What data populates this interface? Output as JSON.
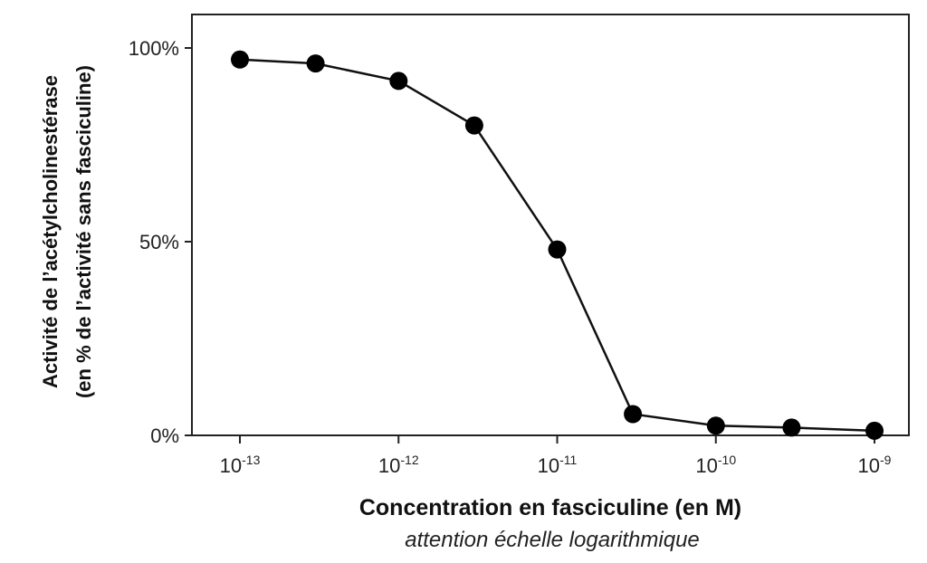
{
  "chart_data": {
    "type": "line",
    "xscale": "log",
    "x": [
      1e-13,
      3e-13,
      1e-12,
      3e-12,
      1e-11,
      3e-11,
      1e-10,
      3e-10,
      1e-09
    ],
    "series": [
      {
        "values": [
          97,
          96,
          91.5,
          80,
          48,
          5.5,
          2.5,
          2,
          1.2
        ]
      }
    ],
    "ylim": [
      0,
      110
    ],
    "yticks": [
      {
        "value": 0,
        "label": "0%"
      },
      {
        "value": 50,
        "label": "50%"
      },
      {
        "value": 100,
        "label": "100%"
      }
    ],
    "xticks": [
      {
        "value": 1e-13,
        "base": "10",
        "exp": "-13"
      },
      {
        "value": 1e-12,
        "base": "10",
        "exp": "-12"
      },
      {
        "value": 1e-11,
        "base": "10",
        "exp": "-11"
      },
      {
        "value": 1e-10,
        "base": "10",
        "exp": "-10"
      },
      {
        "value": 1e-09,
        "base": "10",
        "exp": "-9"
      }
    ],
    "ylabel_line1": "Activité de l’acétylcholinestérase",
    "ylabel_line2": "(en % de l’activité sans fasciculine)",
    "xlabel": "Concentration en fasciculine (en M)",
    "xnote": "attention échelle logarithmique",
    "colors": {
      "line": "#111111",
      "marker": "#000000",
      "frame": "#222222"
    }
  }
}
